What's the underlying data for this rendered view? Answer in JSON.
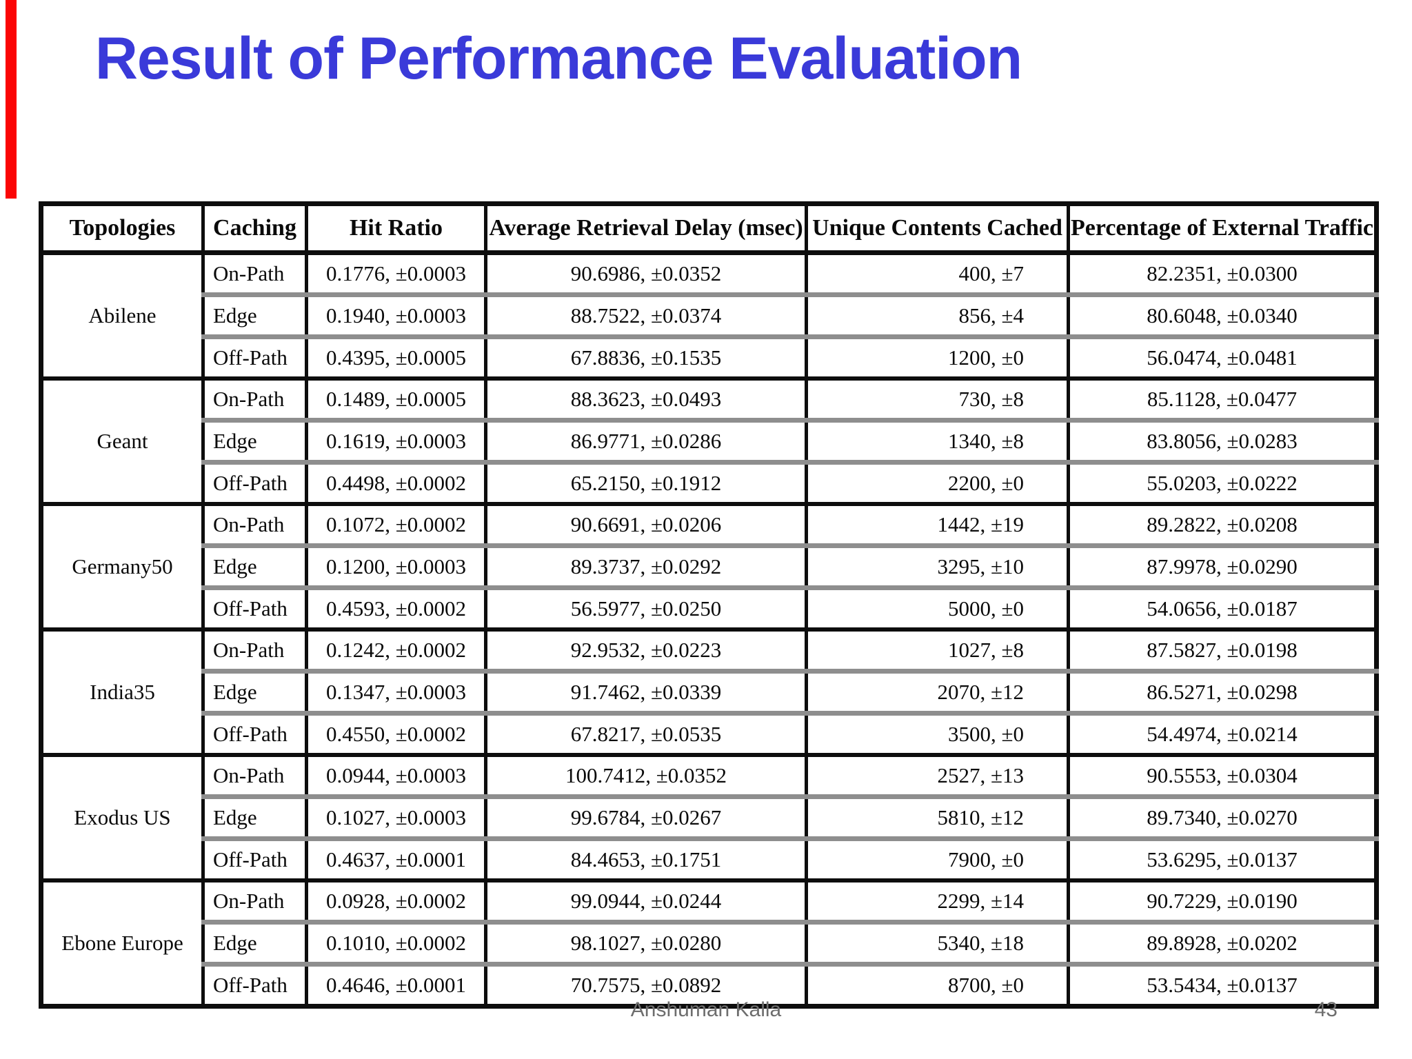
{
  "slide": {
    "title": "Result of Performance Evaluation",
    "footer": {
      "author": "Anshuman Kalla",
      "page_number": "43"
    },
    "colors": {
      "title_blue": "#3a3ad9",
      "red_accent_bar": "#fb0606",
      "table_border": "#0d0d0d",
      "row_divider_gray": "#8e8e8e",
      "footer_gray": "#6e6e6e"
    }
  },
  "chart_data": {
    "type": "table",
    "title": "Result of Performance Evaluation",
    "columns": [
      "Topologies",
      "Caching",
      "Hit Ratio",
      "Average Retrieval Delay (msec)",
      "Unique Contents Cached",
      "Percentage of External Traffic"
    ],
    "row_fields": [
      "caching",
      "hit_ratio",
      "delay",
      "unique_cached",
      "external_traffic"
    ],
    "groups": [
      {
        "topology": "Abilene",
        "rows": [
          {
            "caching": "On-Path",
            "hit_ratio": "0.1776, ±0.0003",
            "delay": "90.6986, ±0.0352",
            "unique_cached": "400, ±7",
            "external_traffic": "82.2351, ±0.0300"
          },
          {
            "caching": "Edge",
            "hit_ratio": "0.1940, ±0.0003",
            "delay": "88.7522, ±0.0374",
            "unique_cached": "856, ±4",
            "external_traffic": "80.6048, ±0.0340"
          },
          {
            "caching": "Off-Path",
            "hit_ratio": "0.4395, ±0.0005",
            "delay": "67.8836, ±0.1535",
            "unique_cached": "1200, ±0",
            "external_traffic": "56.0474, ±0.0481"
          }
        ]
      },
      {
        "topology": "Geant",
        "rows": [
          {
            "caching": "On-Path",
            "hit_ratio": "0.1489, ±0.0005",
            "delay": "88.3623, ±0.0493",
            "unique_cached": "730, ±8",
            "external_traffic": "85.1128, ±0.0477"
          },
          {
            "caching": "Edge",
            "hit_ratio": "0.1619, ±0.0003",
            "delay": "86.9771, ±0.0286",
            "unique_cached": "1340, ±8",
            "external_traffic": "83.8056, ±0.0283"
          },
          {
            "caching": "Off-Path",
            "hit_ratio": "0.4498, ±0.0002",
            "delay": "65.2150, ±0.1912",
            "unique_cached": "2200, ±0",
            "external_traffic": "55.0203, ±0.0222"
          }
        ]
      },
      {
        "topology": "Germany50",
        "rows": [
          {
            "caching": "On-Path",
            "hit_ratio": "0.1072, ±0.0002",
            "delay": "90.6691, ±0.0206",
            "unique_cached": "1442, ±19",
            "external_traffic": "89.2822, ±0.0208"
          },
          {
            "caching": "Edge",
            "hit_ratio": "0.1200, ±0.0003",
            "delay": "89.3737, ±0.0292",
            "unique_cached": "3295, ±10",
            "external_traffic": "87.9978, ±0.0290"
          },
          {
            "caching": "Off-Path",
            "hit_ratio": "0.4593, ±0.0002",
            "delay": "56.5977, ±0.0250",
            "unique_cached": "5000, ±0",
            "external_traffic": "54.0656, ±0.0187"
          }
        ]
      },
      {
        "topology": "India35",
        "rows": [
          {
            "caching": "On-Path",
            "hit_ratio": "0.1242, ±0.0002",
            "delay": "92.9532, ±0.0223",
            "unique_cached": "1027, ±8",
            "external_traffic": "87.5827, ±0.0198"
          },
          {
            "caching": "Edge",
            "hit_ratio": "0.1347, ±0.0003",
            "delay": "91.7462, ±0.0339",
            "unique_cached": "2070, ±12",
            "external_traffic": "86.5271, ±0.0298"
          },
          {
            "caching": "Off-Path",
            "hit_ratio": "0.4550, ±0.0002",
            "delay": "67.8217, ±0.0535",
            "unique_cached": "3500, ±0",
            "external_traffic": "54.4974, ±0.0214"
          }
        ]
      },
      {
        "topology": "Exodus US",
        "rows": [
          {
            "caching": "On-Path",
            "hit_ratio": "0.0944, ±0.0003",
            "delay": "100.7412, ±0.0352",
            "unique_cached": "2527, ±13",
            "external_traffic": "90.5553, ±0.0304"
          },
          {
            "caching": "Edge",
            "hit_ratio": "0.1027, ±0.0003",
            "delay": "99.6784, ±0.0267",
            "unique_cached": "5810, ±12",
            "external_traffic": "89.7340, ±0.0270"
          },
          {
            "caching": "Off-Path",
            "hit_ratio": "0.4637, ±0.0001",
            "delay": "84.4653, ±0.1751",
            "unique_cached": "7900, ±0",
            "external_traffic": "53.6295, ±0.0137"
          }
        ]
      },
      {
        "topology": "Ebone Europe",
        "rows": [
          {
            "caching": "On-Path",
            "hit_ratio": "0.0928, ±0.0002",
            "delay": "99.0944, ±0.0244",
            "unique_cached": "2299, ±14",
            "external_traffic": "90.7229, ±0.0190"
          },
          {
            "caching": "Edge",
            "hit_ratio": "0.1010, ±0.0002",
            "delay": "98.1027, ±0.0280",
            "unique_cached": "5340, ±18",
            "external_traffic": "89.8928, ±0.0202"
          },
          {
            "caching": "Off-Path",
            "hit_ratio": "0.4646, ±0.0001",
            "delay": "70.7575, ±0.0892",
            "unique_cached": "8700, ±0",
            "external_traffic": "53.5434, ±0.0137"
          }
        ]
      }
    ]
  }
}
